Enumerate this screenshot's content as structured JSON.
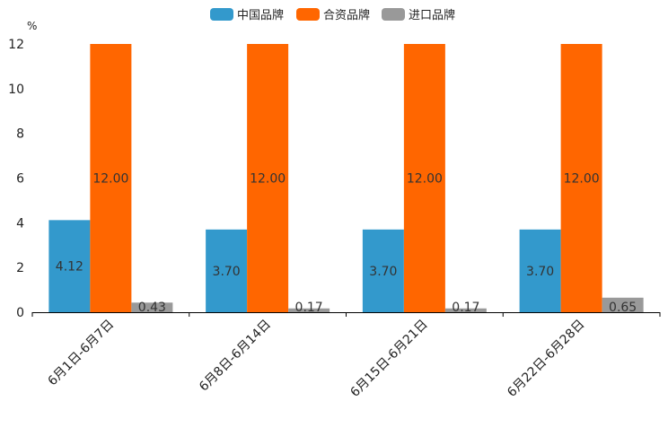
{
  "chart_data": {
    "type": "bar",
    "unit": "%",
    "categories": [
      "6月1日-6月7日",
      "6月8日-6月14日",
      "6月15日-6月21日",
      "6月22日-6月28日"
    ],
    "series": [
      {
        "name": "中国品牌",
        "color": "#3399cc",
        "values": [
          4.12,
          3.7,
          3.7,
          3.7
        ],
        "labels": [
          "4.12",
          "3.70",
          "3.70",
          "3.70"
        ]
      },
      {
        "name": "合资品牌",
        "color": "#ff6600",
        "values": [
          12.0,
          12.0,
          12.0,
          12.0
        ],
        "labels": [
          "12.00",
          "12.00",
          "12.00",
          "12.00"
        ]
      },
      {
        "name": "进口品牌",
        "color": "#999999",
        "values": [
          0.43,
          0.17,
          0.17,
          0.65
        ],
        "labels": [
          "0.43",
          "0.17",
          "0.17",
          "0.65"
        ]
      }
    ],
    "ylim": [
      0,
      12
    ],
    "yticks": [
      "0",
      "2",
      "4",
      "6",
      "8",
      "10",
      "12"
    ],
    "legend_position": "top-center"
  }
}
